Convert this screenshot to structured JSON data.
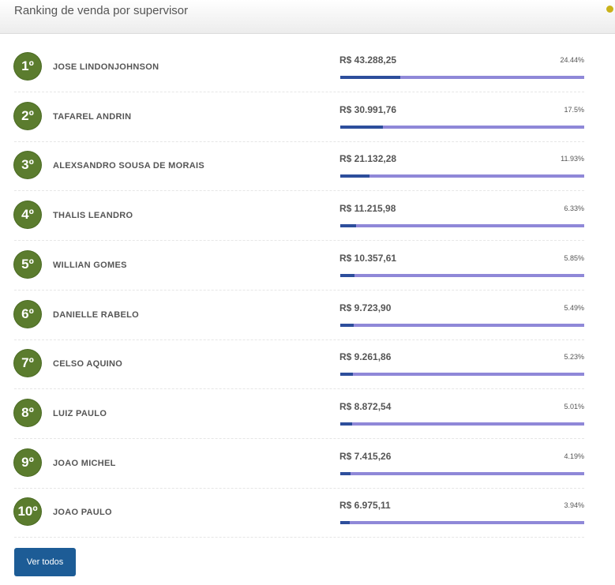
{
  "header": {
    "title": "Ranking de venda por supervisor"
  },
  "rows": [
    {
      "rank": "1º",
      "name": "JOSE LINDONJOHNSON",
      "amount": "R$ 43.288,25",
      "percent": {
        "value": 24.44,
        "label": "24.44%"
      }
    },
    {
      "rank": "2º",
      "name": "TAFAREL ANDRIN",
      "amount": "R$ 30.991,76",
      "percent": {
        "value": 17.5,
        "label": "17.5%"
      }
    },
    {
      "rank": "3º",
      "name": "ALEXSANDRO SOUSA DE MORAIS",
      "amount": "R$ 21.132,28",
      "percent": {
        "value": 11.93,
        "label": "11.93%"
      }
    },
    {
      "rank": "4º",
      "name": "THALIS LEANDRO",
      "amount": "R$ 11.215,98",
      "percent": {
        "value": 6.33,
        "label": "6.33%"
      }
    },
    {
      "rank": "5º",
      "name": "WILLIAN GOMES",
      "amount": "R$ 10.357,61",
      "percent": {
        "value": 5.85,
        "label": "5.85%"
      }
    },
    {
      "rank": "6º",
      "name": "DANIELLE RABELO",
      "amount": "R$ 9.723,90",
      "percent": {
        "value": 5.49,
        "label": "5.49%"
      }
    },
    {
      "rank": "7º",
      "name": "CELSO AQUINO",
      "amount": "R$ 9.261,86",
      "percent": {
        "value": 5.23,
        "label": "5.23%"
      }
    },
    {
      "rank": "8º",
      "name": "LUIZ PAULO",
      "amount": "R$ 8.872,54",
      "percent": {
        "value": 5.01,
        "label": "5.01%"
      }
    },
    {
      "rank": "9º",
      "name": "JOAO MICHEL",
      "amount": "R$ 7.415,26",
      "percent": {
        "value": 4.19,
        "label": "4.19%"
      }
    },
    {
      "rank": "10º",
      "name": "JOAO PAULO",
      "amount": "R$ 6.975,11",
      "percent": {
        "value": 3.94,
        "label": "3.94%"
      }
    }
  ],
  "button": {
    "label": "Ver todos"
  }
}
